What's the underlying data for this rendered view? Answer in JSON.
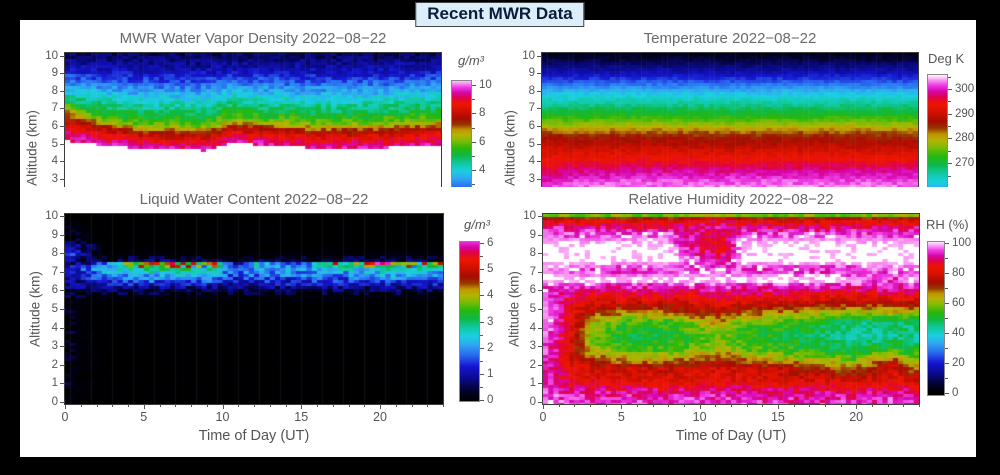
{
  "page_title": "Recent MWR Data",
  "colors": {
    "background": "#000000",
    "plot_background": "#ffffff",
    "title_box_bg": "#ddeefb",
    "title_box_text": "#0a1c3a",
    "panel_title_text": "#6a6a6a",
    "tick_text": "#555555"
  },
  "axis": {
    "xlabel": "Time of Day (UT)",
    "ylabel": "Altitude (km)"
  },
  "colormap": [
    [
      0.0,
      "#000000"
    ],
    [
      0.06,
      "#03032e"
    ],
    [
      0.13,
      "#0a0a8a"
    ],
    [
      0.2,
      "#1515cf"
    ],
    [
      0.27,
      "#2a6cf0"
    ],
    [
      0.33,
      "#2fa8f2"
    ],
    [
      0.38,
      "#1bcfe0"
    ],
    [
      0.43,
      "#10c9a2"
    ],
    [
      0.48,
      "#0db94a"
    ],
    [
      0.53,
      "#27b70d"
    ],
    [
      0.58,
      "#7cbd06"
    ],
    [
      0.62,
      "#b5b303"
    ],
    [
      0.655,
      "#c09602"
    ],
    [
      0.69,
      "#973600"
    ],
    [
      0.73,
      "#a50d00"
    ],
    [
      0.78,
      "#d01000"
    ],
    [
      0.83,
      "#ef1600"
    ],
    [
      0.87,
      "#df0347"
    ],
    [
      0.905,
      "#d607ae"
    ],
    [
      0.94,
      "#ee3de4"
    ],
    [
      0.97,
      "#fa9cf4"
    ],
    [
      1.0,
      "#ffffff"
    ]
  ],
  "chart_data": [
    {
      "id": "wv",
      "type": "heatmap",
      "title": "MWR Water Vapor Density 2022−08−22",
      "colorbar_label": "g/m³",
      "units": "g/m3",
      "x_range": [
        0,
        24
      ],
      "x_tick_labels": null,
      "y_tick_labels": [
        10,
        9,
        8,
        7,
        6,
        5,
        4,
        3
      ],
      "colorbar_tick_labels": [
        10,
        8,
        6,
        4
      ],
      "colorbar_minor_step": 1,
      "cmap_domain": [
        0,
        10.5
      ],
      "noise": 0.45,
      "grid": {
        "mode": "iso",
        "cutoff_below": true,
        "values": [
          1.0,
          2.0,
          3.0,
          4.0,
          5.0,
          6.0,
          7.5,
          8.5,
          9.3,
          9.5
        ],
        "times": [
          0,
          1.2,
          2.5,
          5,
          9,
          10.7,
          12,
          16,
          20,
          24
        ],
        "altitudes": [
          [
            10,
            9.2,
            8.55,
            7.9,
            7.45,
            7.1,
            6.6,
            6.1,
            5.6,
            5.15
          ],
          [
            10,
            9.1,
            8.45,
            7.85,
            7.2,
            6.7,
            6.25,
            5.8,
            5.4,
            5.0
          ],
          [
            10,
            9.05,
            8.35,
            7.7,
            6.95,
            6.35,
            5.95,
            5.55,
            5.15,
            4.9
          ],
          [
            10,
            8.95,
            8.2,
            7.5,
            6.7,
            6.05,
            5.65,
            5.25,
            4.95,
            4.7
          ],
          [
            10,
            8.95,
            8.2,
            7.5,
            6.7,
            6.0,
            5.55,
            5.15,
            4.85,
            4.6
          ],
          [
            10,
            9.1,
            8.45,
            7.85,
            7.05,
            6.45,
            6.05,
            5.65,
            5.35,
            5.05
          ],
          [
            10,
            9.05,
            8.35,
            7.75,
            6.95,
            6.35,
            5.95,
            5.55,
            5.2,
            4.95
          ],
          [
            10,
            9.0,
            8.25,
            7.55,
            6.75,
            6.15,
            5.7,
            5.3,
            5.0,
            4.75
          ],
          [
            10,
            9.0,
            8.3,
            7.6,
            6.8,
            6.2,
            5.75,
            5.35,
            5.0,
            4.75
          ],
          [
            10,
            9.1,
            8.4,
            7.8,
            7.0,
            6.4,
            5.95,
            5.55,
            5.2,
            4.95
          ]
        ]
      }
    },
    {
      "id": "temp",
      "type": "heatmap",
      "title": "Temperature 2022−08−22",
      "colorbar_label": "Deg K",
      "units": "K",
      "x_range": [
        0,
        24
      ],
      "x_tick_labels": null,
      "y_tick_labels": [
        10,
        9,
        8,
        7,
        6,
        5,
        4,
        3
      ],
      "colorbar_tick_labels": [
        300,
        290,
        280,
        270
      ],
      "colorbar_minor_step": 5,
      "cmap_domain": [
        236,
        306
      ],
      "noise": 1.4,
      "grid": {
        "mode": "iso",
        "cutoff_below": false,
        "values": [
          239,
          248,
          257,
          262,
          266,
          270,
          274,
          278,
          282,
          286,
          290,
          294,
          298,
          302,
          305
        ],
        "times": [
          0,
          2,
          6,
          12,
          18,
          24
        ],
        "altitudes": [
          [
            10,
            9.0,
            8.2,
            7.8,
            7.3,
            6.85,
            6.4,
            6.05,
            5.8,
            5.5,
            4.9,
            4.0,
            3.2,
            2.4,
            1.6
          ],
          [
            10,
            9.0,
            8.2,
            7.8,
            7.3,
            6.85,
            6.4,
            6.05,
            5.75,
            5.4,
            4.8,
            4.1,
            3.5,
            2.8,
            2.0
          ],
          [
            10,
            9.05,
            8.25,
            7.85,
            7.35,
            6.9,
            6.45,
            6.1,
            5.8,
            5.4,
            4.75,
            4.2,
            3.6,
            2.9,
            2.1
          ],
          [
            10,
            9.0,
            8.2,
            7.8,
            7.3,
            6.85,
            6.4,
            6.05,
            5.75,
            5.35,
            4.7,
            4.15,
            3.55,
            2.85,
            2.05
          ],
          [
            10,
            9.05,
            8.25,
            7.8,
            7.3,
            6.9,
            6.45,
            6.1,
            5.8,
            5.4,
            4.75,
            4.2,
            3.6,
            2.9,
            2.1
          ],
          [
            10,
            9.0,
            8.2,
            7.8,
            7.3,
            6.85,
            6.4,
            6.05,
            5.75,
            5.35,
            4.7,
            4.15,
            3.55,
            2.85,
            2.05
          ]
        ]
      }
    },
    {
      "id": "lwc",
      "type": "heatmap",
      "title": "Liquid Water Content 2022−08−22",
      "colorbar_label": "g/m³",
      "units": "g/m3",
      "x_range": [
        0,
        24
      ],
      "x_tick_labels": [
        0,
        5,
        10,
        15,
        20
      ],
      "y_tick_labels": [
        10,
        9,
        8,
        7,
        6,
        5,
        4,
        3,
        2,
        1,
        0
      ],
      "colorbar_tick_labels": [
        6,
        5,
        4,
        3,
        2,
        1,
        0
      ],
      "colorbar_minor_step": 0.5,
      "cmap_domain": [
        0,
        6.5
      ],
      "noise": 0.5,
      "grid": {
        "mode": "profile",
        "altitudes": [
          10,
          8.6,
          8.3,
          7.9,
          7.6,
          7.42,
          7.26,
          7.08,
          6.85,
          6.55,
          6.25,
          6.0,
          5.75,
          5.4,
          0
        ],
        "times": [
          0,
          1.0,
          2.5,
          4.5,
          7,
          9.5,
          10.8,
          12.2,
          13.5,
          15,
          17,
          19,
          20.7,
          21.6,
          23,
          24
        ],
        "values": [
          [
            0,
            0.4,
            1.6,
            1.8,
            0.8,
            0.6,
            0.8,
            0.9,
            0.7,
            0.6,
            0.5,
            0.4,
            0.3,
            0.25,
            0.22
          ],
          [
            0,
            0.2,
            0.8,
            1.0,
            0.6,
            0.9,
            1.3,
            1.4,
            1.3,
            1.1,
            0.8,
            0.5,
            0.2,
            0.1,
            0.05
          ],
          [
            0,
            0,
            0,
            0.1,
            0.4,
            1.6,
            2.2,
            2.3,
            1.9,
            1.5,
            1.0,
            0.5,
            0.15,
            0,
            0
          ],
          [
            0,
            0,
            0,
            0.1,
            0.6,
            4.6,
            3.1,
            2.7,
            2.2,
            1.7,
            1.1,
            0.5,
            0.15,
            0,
            0
          ],
          [
            0,
            0,
            0,
            0.1,
            0.7,
            5.0,
            3.3,
            2.8,
            2.3,
            1.8,
            1.1,
            0.5,
            0.15,
            0,
            0
          ],
          [
            0,
            0,
            0,
            0.1,
            0.6,
            4.2,
            2.9,
            2.6,
            2.1,
            1.7,
            1.0,
            0.5,
            0.15,
            0,
            0
          ],
          [
            0,
            0,
            0,
            0,
            0.3,
            1.0,
            1.4,
            1.6,
            1.6,
            1.3,
            0.8,
            0.4,
            0.1,
            0,
            0
          ],
          [
            0,
            0,
            0,
            0.1,
            0.4,
            2.8,
            2.2,
            2.1,
            1.9,
            1.5,
            0.9,
            0.5,
            0.12,
            0,
            0
          ],
          [
            0,
            0,
            0,
            0.1,
            0.4,
            1.9,
            2.0,
            2.0,
            1.9,
            1.5,
            1.0,
            0.5,
            0.15,
            0,
            0
          ],
          [
            0,
            0,
            0,
            0.1,
            0.4,
            1.7,
            1.9,
            2.0,
            1.8,
            1.5,
            0.9,
            0.5,
            0.15,
            0,
            0
          ],
          [
            0,
            0,
            0,
            0.1,
            0.5,
            3.6,
            2.5,
            2.2,
            1.9,
            1.5,
            1.0,
            0.5,
            0.15,
            0,
            0
          ],
          [
            0,
            0,
            0,
            0.1,
            0.5,
            4.4,
            2.7,
            2.3,
            1.9,
            1.5,
            1.0,
            0.5,
            0.15,
            0,
            0
          ],
          [
            0,
            0,
            0,
            0.15,
            0.7,
            6.0,
            3.4,
            2.8,
            2.2,
            1.7,
            1.1,
            0.5,
            0.15,
            0,
            0
          ],
          [
            0,
            0,
            0,
            0.1,
            0.5,
            4.8,
            2.8,
            2.4,
            2.0,
            1.6,
            1.0,
            0.5,
            0.15,
            0,
            0
          ],
          [
            0,
            0,
            0,
            0.1,
            0.5,
            4.5,
            2.7,
            2.4,
            2.0,
            1.6,
            1.0,
            0.5,
            0.15,
            0,
            0
          ],
          [
            0,
            0,
            0,
            0.1,
            0.5,
            4.2,
            2.6,
            2.3,
            1.9,
            1.5,
            1.0,
            0.5,
            0.15,
            0,
            0
          ]
        ]
      }
    },
    {
      "id": "rh",
      "type": "heatmap",
      "title": "Relative Humidity 2022−08−22",
      "colorbar_label": "RH (%)",
      "units": "%",
      "x_range": [
        0,
        24
      ],
      "x_tick_labels": [
        0,
        5,
        10,
        15,
        20
      ],
      "y_tick_labels": [
        10,
        9,
        8,
        7,
        6,
        5,
        4,
        3,
        2,
        1,
        0
      ],
      "colorbar_tick_labels": [
        100,
        80,
        60,
        40,
        20,
        0
      ],
      "colorbar_minor_step": 10,
      "cmap_domain": [
        0,
        101.5
      ],
      "noise": 4.5,
      "grid": {
        "mode": "profile",
        "altitudes": [
          10,
          9.8,
          9.4,
          9.0,
          8.4,
          7.6,
          7.05,
          6.55,
          6.1,
          5.75,
          5.35,
          4.9,
          4.3,
          3.5,
          2.8,
          2.3,
          1.8,
          1.2,
          0.8,
          0.4,
          0.05
        ],
        "times": [
          0,
          1.0,
          2.0,
          3.2,
          5,
          8,
          10.3,
          11.3,
          12.8,
          15,
          17.5,
          20,
          22.55,
          23.3,
          24
        ],
        "values": [
          [
            58,
            80,
            90,
            97,
            100,
            100,
            98,
            100,
            95,
            98,
            99,
            99,
            99,
            98,
            96,
            92,
            91,
            92,
            94,
            97,
            99
          ],
          [
            58,
            80,
            93,
            96,
            100,
            100,
            97,
            100,
            93,
            92,
            93,
            93,
            92,
            91,
            90,
            89,
            90,
            91,
            92,
            94,
            95
          ],
          [
            58,
            80,
            91,
            96,
            100,
            100,
            96,
            100,
            92,
            88,
            84,
            82,
            80,
            78,
            76,
            78,
            82,
            84,
            89,
            93,
            94
          ],
          [
            58,
            80,
            90,
            96,
            100,
            100,
            95,
            100,
            92,
            87,
            80,
            74,
            64,
            58,
            62,
            70,
            80,
            82,
            88,
            92,
            94
          ],
          [
            58,
            80,
            89,
            96,
            100,
            100,
            94,
            100,
            91,
            86,
            79,
            70,
            55,
            50,
            56,
            66,
            79,
            81,
            88,
            92,
            94
          ],
          [
            58,
            80,
            89,
            96,
            100,
            100,
            95,
            100,
            91,
            86,
            79,
            70,
            54,
            50,
            55,
            65,
            78,
            81,
            88,
            92,
            94
          ],
          [
            62,
            84,
            91,
            89,
            87,
            95,
            96,
            100,
            92,
            87,
            81,
            75,
            62,
            55,
            60,
            70,
            79,
            82,
            89,
            92,
            94
          ],
          [
            63,
            85,
            92,
            87,
            84,
            91,
            97,
            100,
            93,
            88,
            82,
            77,
            66,
            58,
            63,
            72,
            80,
            83,
            89,
            93,
            95
          ],
          [
            60,
            82,
            90,
            95,
            99,
            100,
            95,
            100,
            92,
            87,
            80,
            72,
            57,
            52,
            57,
            67,
            78,
            81,
            88,
            92,
            94
          ],
          [
            58,
            80,
            89,
            96,
            100,
            100,
            94,
            100,
            91,
            86,
            79,
            69,
            55,
            50,
            55,
            64,
            77,
            80,
            87,
            91,
            93
          ],
          [
            58,
            80,
            89,
            96,
            100,
            100,
            94,
            100,
            91,
            85,
            77,
            66,
            51,
            47,
            52,
            60,
            73,
            79,
            87,
            91,
            93
          ],
          [
            58,
            80,
            89,
            96,
            100,
            100,
            94,
            100,
            90,
            84,
            76,
            63,
            46,
            43,
            50,
            57,
            68,
            78,
            86,
            91,
            93
          ],
          [
            60,
            81,
            90,
            96,
            100,
            100,
            97,
            93,
            93,
            86,
            77,
            64,
            47,
            44,
            55,
            72,
            80,
            82,
            88,
            93,
            95
          ],
          [
            60,
            81,
            90,
            96,
            100,
            100,
            95,
            100,
            92,
            85,
            77,
            64,
            47,
            44,
            51,
            58,
            70,
            79,
            87,
            92,
            94
          ],
          [
            60,
            81,
            90,
            96,
            100,
            100,
            95,
            100,
            92,
            85,
            77,
            64,
            47,
            44,
            51,
            58,
            70,
            79,
            87,
            92,
            94
          ]
        ]
      }
    }
  ]
}
